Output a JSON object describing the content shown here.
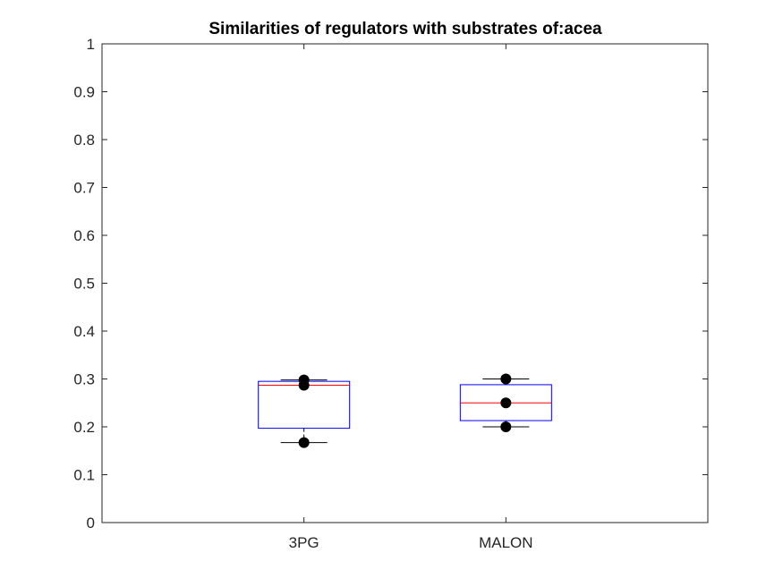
{
  "chart_data": {
    "type": "box",
    "title": "Similarities of regulators with substrates of:acea",
    "xlabel": "",
    "ylabel": "",
    "ylim": [
      0,
      1
    ],
    "yticks": [
      0,
      0.1,
      0.2,
      0.3,
      0.4,
      0.5,
      0.6,
      0.7,
      0.8,
      0.9,
      1
    ],
    "ytick_labels": [
      "0",
      "0.1",
      "0.2",
      "0.3",
      "0.4",
      "0.5",
      "0.6",
      "0.7",
      "0.8",
      "0.9",
      "1"
    ],
    "categories": [
      "3PG",
      "MALON"
    ],
    "boxes": [
      {
        "category": "3PG",
        "min": 0.167,
        "q1": 0.197,
        "median": 0.287,
        "q3": 0.295,
        "max": 0.298,
        "points": [
          0.167,
          0.287,
          0.298
        ]
      },
      {
        "category": "MALON",
        "min": 0.2,
        "q1": 0.213,
        "median": 0.25,
        "q3": 0.288,
        "max": 0.3,
        "points": [
          0.2,
          0.25,
          0.3
        ]
      }
    ],
    "grid": false,
    "colors": {
      "box": "#0000ff",
      "median": "#ff0000",
      "whisker": "#000000",
      "points": "#000000",
      "axes": "#262626"
    }
  }
}
